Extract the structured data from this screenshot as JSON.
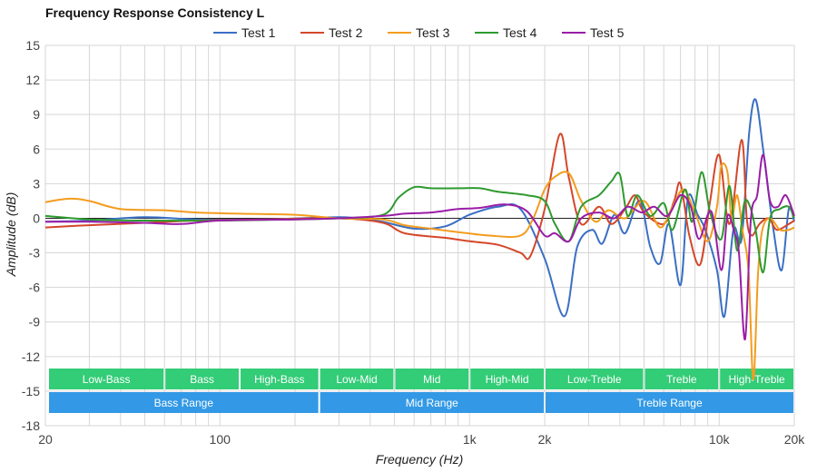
{
  "chart_data": {
    "type": "line",
    "title": "Frequency Response Consistency L",
    "xlabel": "Frequency (Hz)",
    "ylabel": "Amplitude (dB)",
    "x_scale": "log",
    "xlim": [
      20,
      20000
    ],
    "ylim": [
      -18,
      15
    ],
    "x_ticks": [
      {
        "value": 20,
        "label": "20"
      },
      {
        "value": 100,
        "label": "100"
      },
      {
        "value": 1000,
        "label": "1k"
      },
      {
        "value": 2000,
        "label": "2k"
      },
      {
        "value": 10000,
        "label": "10k"
      },
      {
        "value": 20000,
        "label": "20k"
      }
    ],
    "y_ticks": [
      15,
      12,
      9,
      6,
      3,
      0,
      -3,
      -6,
      -9,
      -12,
      -15,
      -18
    ],
    "grid": true,
    "legend_position": "top",
    "series": [
      {
        "name": "Test 1",
        "color": "#3a6fc4",
        "points": [
          [
            20,
            -0.3
          ],
          [
            30,
            -0.2
          ],
          [
            50,
            0.1
          ],
          [
            80,
            -0.1
          ],
          [
            150,
            -0.1
          ],
          [
            300,
            0.1
          ],
          [
            380,
            -0.1
          ],
          [
            450,
            -0.3
          ],
          [
            600,
            -0.9
          ],
          [
            800,
            -0.7
          ],
          [
            1000,
            0.3
          ],
          [
            1300,
            1.0
          ],
          [
            1600,
            0.8
          ],
          [
            2000,
            -3.5
          ],
          [
            2400,
            -8.5
          ],
          [
            2700,
            -2.5
          ],
          [
            3100,
            -1.0
          ],
          [
            3400,
            -2.2
          ],
          [
            3800,
            0.3
          ],
          [
            4200,
            -1.3
          ],
          [
            4800,
            1.5
          ],
          [
            5300,
            -2.5
          ],
          [
            5800,
            -3.9
          ],
          [
            6300,
            -0.5
          ],
          [
            7000,
            -5.8
          ],
          [
            7500,
            1.8
          ],
          [
            8200,
            0.3
          ],
          [
            8800,
            -1.0
          ],
          [
            9800,
            -4.5
          ],
          [
            10500,
            -8.5
          ],
          [
            11400,
            -1.0
          ],
          [
            12300,
            -1.8
          ],
          [
            13200,
            7.5
          ],
          [
            14000,
            10.3
          ],
          [
            15000,
            6.0
          ],
          [
            16500,
            -1.0
          ],
          [
            17800,
            -4.5
          ],
          [
            19000,
            0.8
          ],
          [
            20000,
            -0.3
          ]
        ]
      },
      {
        "name": "Test 2",
        "color": "#d4472a",
        "points": [
          [
            20,
            -0.8
          ],
          [
            30,
            -0.6
          ],
          [
            50,
            -0.4
          ],
          [
            80,
            -0.2
          ],
          [
            150,
            -0.1
          ],
          [
            300,
            0.0
          ],
          [
            450,
            -0.4
          ],
          [
            550,
            -1.3
          ],
          [
            800,
            -1.7
          ],
          [
            1000,
            -2.0
          ],
          [
            1300,
            -2.3
          ],
          [
            1600,
            -3.0
          ],
          [
            1750,
            -3.3
          ],
          [
            2000,
            0.8
          ],
          [
            2300,
            7.3
          ],
          [
            2500,
            3.5
          ],
          [
            2800,
            -0.5
          ],
          [
            3300,
            1.0
          ],
          [
            3700,
            -0.5
          ],
          [
            4200,
            0.8
          ],
          [
            4600,
            2.0
          ],
          [
            5000,
            0.5
          ],
          [
            6000,
            -0.5
          ],
          [
            6600,
            1.5
          ],
          [
            7000,
            3.0
          ],
          [
            7600,
            -1.5
          ],
          [
            8400,
            -4.0
          ],
          [
            9200,
            1.5
          ],
          [
            10000,
            5.5
          ],
          [
            11000,
            -0.5
          ],
          [
            12300,
            6.8
          ],
          [
            12900,
            0.0
          ],
          [
            13500,
            -1.5
          ],
          [
            14500,
            -0.5
          ],
          [
            15800,
            0.0
          ],
          [
            17000,
            -1.0
          ],
          [
            19000,
            -0.5
          ],
          [
            20000,
            -0.2
          ]
        ]
      },
      {
        "name": "Test 3",
        "color": "#f39c1e",
        "points": [
          [
            20,
            1.4
          ],
          [
            25,
            1.7
          ],
          [
            30,
            1.5
          ],
          [
            40,
            0.8
          ],
          [
            60,
            0.7
          ],
          [
            80,
            0.5
          ],
          [
            120,
            0.4
          ],
          [
            200,
            0.3
          ],
          [
            300,
            0.0
          ],
          [
            450,
            -0.1
          ],
          [
            550,
            -0.6
          ],
          [
            700,
            -0.9
          ],
          [
            900,
            -1.2
          ],
          [
            1200,
            -1.5
          ],
          [
            1600,
            -1.5
          ],
          [
            1800,
            0.0
          ],
          [
            2000,
            2.5
          ],
          [
            2200,
            3.6
          ],
          [
            2500,
            3.9
          ],
          [
            2800,
            1.5
          ],
          [
            3200,
            -0.3
          ],
          [
            3600,
            0.7
          ],
          [
            4200,
            0.0
          ],
          [
            5000,
            1.5
          ],
          [
            5800,
            -0.8
          ],
          [
            6500,
            1.0
          ],
          [
            7200,
            2.5
          ],
          [
            8000,
            0.5
          ],
          [
            9000,
            -2.0
          ],
          [
            9800,
            1.0
          ],
          [
            10200,
            4.5
          ],
          [
            10800,
            4.0
          ],
          [
            11200,
            0.0
          ],
          [
            11800,
            2.0
          ],
          [
            12400,
            -1.0
          ],
          [
            13100,
            -4.5
          ],
          [
            13700,
            -14.0
          ],
          [
            14300,
            -5.0
          ],
          [
            14900,
            -1.0
          ],
          [
            16000,
            0.0
          ],
          [
            17500,
            -1.0
          ],
          [
            19000,
            -1.0
          ],
          [
            20000,
            -0.8
          ]
        ]
      },
      {
        "name": "Test 4",
        "color": "#2f9a2f",
        "points": [
          [
            20,
            0.2
          ],
          [
            30,
            -0.1
          ],
          [
            50,
            -0.2
          ],
          [
            100,
            -0.2
          ],
          [
            200,
            -0.1
          ],
          [
            300,
            0.0
          ],
          [
            450,
            0.3
          ],
          [
            520,
            1.8
          ],
          [
            600,
            2.7
          ],
          [
            700,
            2.6
          ],
          [
            900,
            2.6
          ],
          [
            1100,
            2.6
          ],
          [
            1300,
            2.3
          ],
          [
            1700,
            2.0
          ],
          [
            2000,
            1.5
          ],
          [
            2200,
            -0.5
          ],
          [
            2500,
            -2.0
          ],
          [
            2800,
            1.0
          ],
          [
            3300,
            2.0
          ],
          [
            3700,
            3.2
          ],
          [
            4000,
            3.8
          ],
          [
            4300,
            0.2
          ],
          [
            4700,
            2.0
          ],
          [
            5300,
            0.2
          ],
          [
            6000,
            1.3
          ],
          [
            6500,
            -1.0
          ],
          [
            7300,
            2.5
          ],
          [
            7800,
            -0.3
          ],
          [
            8500,
            4.0
          ],
          [
            9200,
            0.5
          ],
          [
            10200,
            -1.8
          ],
          [
            11000,
            2.8
          ],
          [
            11800,
            -2.8
          ],
          [
            12600,
            1.3
          ],
          [
            13300,
            1.0
          ],
          [
            14000,
            -1.0
          ],
          [
            15000,
            -4.7
          ],
          [
            16000,
            0.0
          ],
          [
            17500,
            0.8
          ],
          [
            19000,
            1.0
          ],
          [
            20000,
            0.0
          ]
        ]
      },
      {
        "name": "Test 5",
        "color": "#9a1da7",
        "points": [
          [
            20,
            -0.3
          ],
          [
            30,
            -0.3
          ],
          [
            50,
            -0.4
          ],
          [
            70,
            -0.5
          ],
          [
            100,
            -0.2
          ],
          [
            200,
            -0.1
          ],
          [
            300,
            0.0
          ],
          [
            450,
            0.2
          ],
          [
            550,
            0.4
          ],
          [
            700,
            0.5
          ],
          [
            900,
            0.8
          ],
          [
            1100,
            0.9
          ],
          [
            1400,
            1.2
          ],
          [
            1700,
            0.6
          ],
          [
            2000,
            -1.5
          ],
          [
            2200,
            -1.3
          ],
          [
            2500,
            -2.0
          ],
          [
            2800,
            0.0
          ],
          [
            3300,
            0.5
          ],
          [
            3800,
            0.0
          ],
          [
            4300,
            1.0
          ],
          [
            4900,
            0.5
          ],
          [
            5500,
            1.0
          ],
          [
            6200,
            0.2
          ],
          [
            7000,
            2.0
          ],
          [
            7700,
            1.0
          ],
          [
            8300,
            -1.8
          ],
          [
            9300,
            0.6
          ],
          [
            10200,
            -4.5
          ],
          [
            10800,
            0.2
          ],
          [
            11500,
            -1.2
          ],
          [
            12000,
            -3.0
          ],
          [
            12700,
            -10.5
          ],
          [
            13400,
            0.0
          ],
          [
            14200,
            2.0
          ],
          [
            15000,
            5.5
          ],
          [
            16000,
            1.5
          ],
          [
            17200,
            1.0
          ],
          [
            18500,
            2.0
          ],
          [
            20000,
            0.2
          ]
        ]
      }
    ],
    "band_rows": [
      [
        {
          "label": "Low-Bass",
          "from": 20,
          "to": 60
        },
        {
          "label": "Bass",
          "from": 60,
          "to": 120
        },
        {
          "label": "High-Bass",
          "from": 120,
          "to": 250
        },
        {
          "label": "Low-Mid",
          "from": 250,
          "to": 500
        },
        {
          "label": "Mid",
          "from": 500,
          "to": 1000
        },
        {
          "label": "High-Mid",
          "from": 1000,
          "to": 2000
        },
        {
          "label": "Low-Treble",
          "from": 2000,
          "to": 5000
        },
        {
          "label": "Treble",
          "from": 5000,
          "to": 10000
        },
        {
          "label": "High-Treble",
          "from": 10000,
          "to": 20000
        }
      ],
      [
        {
          "label": "Bass Range",
          "from": 20,
          "to": 250
        },
        {
          "label": "Mid Range",
          "from": 250,
          "to": 2000
        },
        {
          "label": "Treble Range",
          "from": 2000,
          "to": 20000
        }
      ]
    ],
    "band_colors": [
      "#33cc77",
      "#3399e6"
    ]
  }
}
